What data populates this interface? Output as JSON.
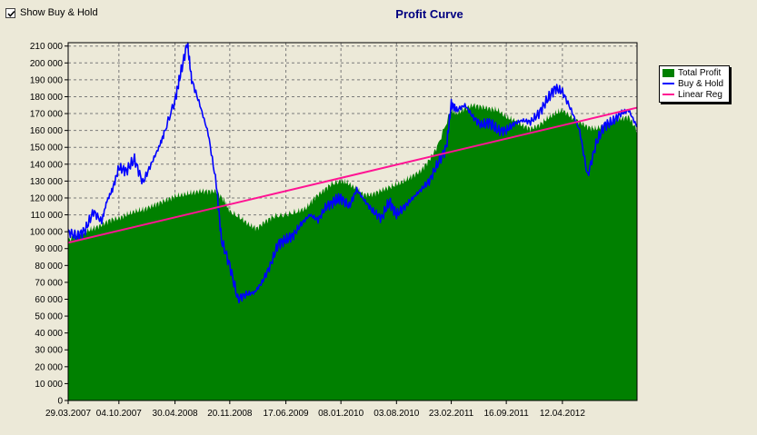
{
  "toolbar": {
    "show_buy_hold_label": "Show Buy & Hold",
    "show_buy_hold_checked": true
  },
  "colors": {
    "background": "#ece9d8",
    "plot_background": "#ece9d8",
    "total_profit": "#008000",
    "buy_hold": "#0000ff",
    "linear_reg": "#ff1493",
    "title": "#000080"
  },
  "chart_data": {
    "type": "area",
    "title": "Profit Curve",
    "xlabel": "",
    "ylabel": "",
    "ylim": [
      0,
      212000
    ],
    "yticks": [
      0,
      10000,
      20000,
      30000,
      40000,
      50000,
      60000,
      70000,
      80000,
      90000,
      100000,
      110000,
      120000,
      130000,
      140000,
      150000,
      160000,
      170000,
      180000,
      190000,
      200000,
      210000
    ],
    "ytick_labels": [
      "0",
      "10 000",
      "20 000",
      "30 000",
      "40 000",
      "50 000",
      "60 000",
      "70 000",
      "80 000",
      "90 000",
      "100 000",
      "110 000",
      "120 000",
      "130 000",
      "140 000",
      "150 000",
      "160 000",
      "170 000",
      "180 000",
      "190 000",
      "200 000",
      "210 000"
    ],
    "xlim": [
      "2007-03-29",
      "2013-01-15"
    ],
    "xticks": [
      "29.03.2007",
      "04.10.2007",
      "30.04.2008",
      "20.11.2008",
      "17.06.2009",
      "08.01.2010",
      "03.08.2010",
      "23.02.2011",
      "16.09.2011",
      "12.04.2012"
    ],
    "grid": true,
    "legend_position": "top-right",
    "series": [
      {
        "name": "Total Profit",
        "type": "area",
        "x": [
          "2007-03-29",
          "2007-05-01",
          "2007-06-01",
          "2007-07-01",
          "2007-08-01",
          "2007-09-01",
          "2007-10-04",
          "2007-11-01",
          "2007-12-01",
          "2008-01-01",
          "2008-02-01",
          "2008-03-01",
          "2008-04-01",
          "2008-04-30",
          "2008-06-01",
          "2008-07-01",
          "2008-08-01",
          "2008-09-01",
          "2008-10-01",
          "2008-11-01",
          "2008-11-20",
          "2009-01-01",
          "2009-02-01",
          "2009-03-01",
          "2009-04-01",
          "2009-05-01",
          "2009-06-17",
          "2009-08-01",
          "2009-09-01",
          "2009-10-01",
          "2009-11-01",
          "2009-12-01",
          "2010-01-08",
          "2010-02-01",
          "2010-03-01",
          "2010-04-01",
          "2010-05-01",
          "2010-06-01",
          "2010-07-01",
          "2010-08-03",
          "2010-09-01",
          "2010-10-01",
          "2010-11-01",
          "2010-12-01",
          "2011-01-01",
          "2011-02-23",
          "2011-03-15",
          "2011-04-15",
          "2011-05-15",
          "2011-06-15",
          "2011-07-15",
          "2011-08-15",
          "2011-09-16",
          "2011-10-15",
          "2011-11-15",
          "2011-12-15",
          "2012-01-15",
          "2012-02-15",
          "2012-03-15",
          "2012-04-12",
          "2012-05-15",
          "2012-06-15",
          "2012-07-15",
          "2012-08-15",
          "2012-09-15",
          "2012-10-15",
          "2012-11-15",
          "2012-12-15",
          "2013-01-15"
        ],
        "values": [
          95000,
          98000,
          100000,
          102000,
          104000,
          107000,
          108000,
          110000,
          112000,
          113000,
          115000,
          117000,
          119000,
          121000,
          122000,
          123000,
          124000,
          124000,
          124000,
          118000,
          112000,
          108000,
          104000,
          102000,
          106000,
          109000,
          110000,
          112000,
          114000,
          120000,
          124000,
          128000,
          130000,
          129000,
          126000,
          122000,
          122000,
          124000,
          126000,
          128000,
          130000,
          133000,
          136000,
          142000,
          150000,
          172000,
          170000,
          173000,
          175000,
          174000,
          173000,
          172000,
          168000,
          166000,
          163000,
          161000,
          163000,
          167000,
          170000,
          172000,
          168000,
          165000,
          162000,
          161000,
          163000,
          165000,
          167000,
          168000,
          160000
        ]
      },
      {
        "name": "Buy & Hold",
        "type": "line",
        "x": [
          "2007-03-29",
          "2007-05-01",
          "2007-06-01",
          "2007-07-01",
          "2007-08-01",
          "2007-08-20",
          "2007-09-10",
          "2007-10-04",
          "2007-11-01",
          "2007-12-01",
          "2008-01-01",
          "2008-02-01",
          "2008-03-01",
          "2008-03-20",
          "2008-04-30",
          "2008-05-20",
          "2008-06-15",
          "2008-07-01",
          "2008-08-01",
          "2008-09-01",
          "2008-10-01",
          "2008-10-20",
          "2008-11-20",
          "2008-12-20",
          "2009-01-20",
          "2009-02-20",
          "2009-03-20",
          "2009-04-20",
          "2009-05-20",
          "2009-06-17",
          "2009-07-15",
          "2009-08-15",
          "2009-09-15",
          "2009-10-15",
          "2009-11-15",
          "2009-12-15",
          "2010-01-08",
          "2010-02-08",
          "2010-03-08",
          "2010-04-08",
          "2010-05-08",
          "2010-06-08",
          "2010-07-08",
          "2010-08-03",
          "2010-09-03",
          "2010-10-03",
          "2010-11-03",
          "2010-12-03",
          "2011-01-03",
          "2011-02-05",
          "2011-02-23",
          "2011-03-15",
          "2011-04-15",
          "2011-05-15",
          "2011-06-15",
          "2011-07-15",
          "2011-08-15",
          "2011-09-16",
          "2011-10-15",
          "2011-11-15",
          "2011-12-15",
          "2012-01-15",
          "2012-02-15",
          "2012-03-15",
          "2012-04-12",
          "2012-05-15",
          "2012-06-15",
          "2012-07-15",
          "2012-08-15",
          "2012-09-15",
          "2012-10-15",
          "2012-11-15",
          "2012-12-15",
          "2013-01-15"
        ],
        "values": [
          100000,
          97000,
          101000,
          112000,
          106000,
          118000,
          125000,
          138000,
          136000,
          143000,
          129000,
          140000,
          150000,
          158000,
          178000,
          193000,
          212000,
          190000,
          175000,
          158000,
          128000,
          95000,
          80000,
          60000,
          63000,
          64000,
          70000,
          80000,
          93000,
          95000,
          98000,
          105000,
          110000,
          107000,
          115000,
          118000,
          120000,
          115000,
          125000,
          118000,
          112000,
          108000,
          118000,
          110000,
          115000,
          120000,
          125000,
          130000,
          140000,
          150000,
          176000,
          172000,
          175000,
          168000,
          163000,
          165000,
          160000,
          160000,
          164000,
          166000,
          165000,
          170000,
          178000,
          185000,
          183000,
          172000,
          160000,
          133000,
          152000,
          163000,
          165000,
          170000,
          172000,
          162000
        ]
      },
      {
        "name": "Linear Reg",
        "type": "line",
        "x": [
          "2007-03-29",
          "2013-01-15"
        ],
        "values": [
          93500,
          173500
        ]
      }
    ]
  }
}
